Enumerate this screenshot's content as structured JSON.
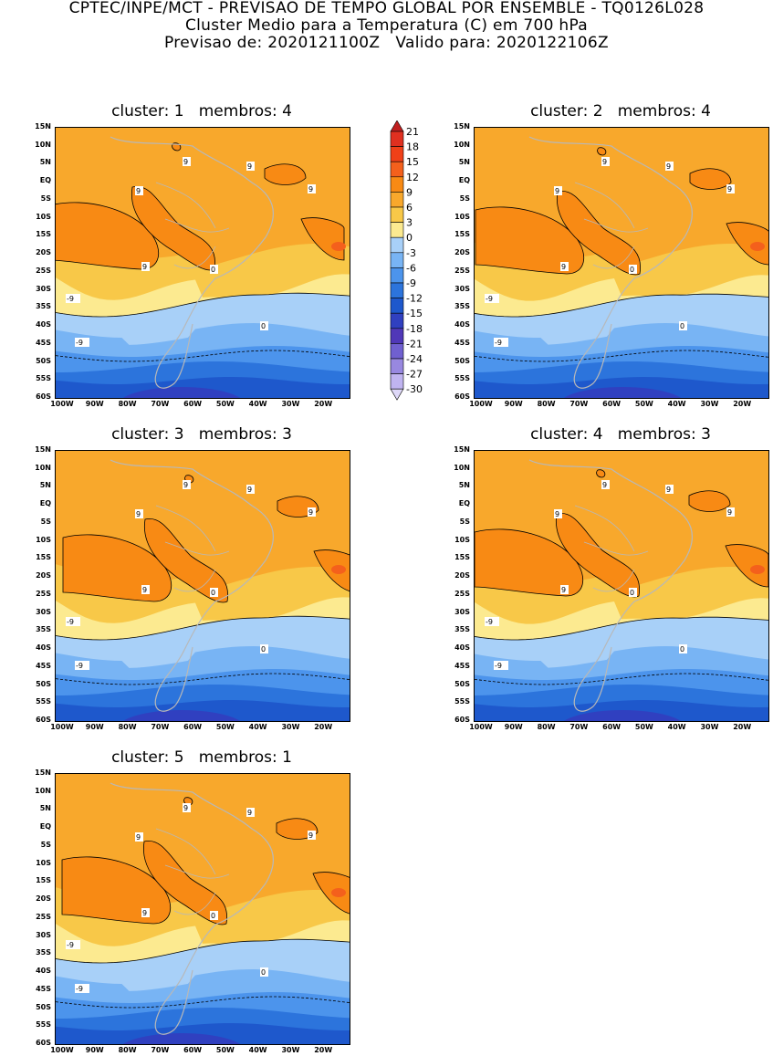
{
  "header": {
    "line1": "CPTEC/INPE/MCT - PREVISAO DE TEMPO GLOBAL POR ENSEMBLE - TQ0126L028",
    "line2": "Cluster Medio para a Temperatura (C) em 700 hPa",
    "line3": "Previsao de: 2020121100Z   Valido para: 2020122106Z"
  },
  "axes": {
    "lat_labels": [
      "15N",
      "10N",
      "5N",
      "EQ",
      "5S",
      "10S",
      "15S",
      "20S",
      "25S",
      "30S",
      "35S",
      "40S",
      "45S",
      "50S",
      "55S",
      "60S"
    ],
    "lon_labels": [
      "100W",
      "90W",
      "80W",
      "70W",
      "60W",
      "50W",
      "40W",
      "30W",
      "20W"
    ]
  },
  "colorbar": {
    "levels": [
      "21",
      "18",
      "15",
      "12",
      "9",
      "6",
      "3",
      "0",
      "-3",
      "-6",
      "-9",
      "-12",
      "-15",
      "-18",
      "-21",
      "-24",
      "-27",
      "-30"
    ],
    "colors": [
      "#c02020",
      "#e03020",
      "#f04018",
      "#f4601c",
      "#f88a14",
      "#f8a82c",
      "#f8c848",
      "#fcea90",
      "#a8d0f8",
      "#78b4f4",
      "#4c94ec",
      "#2c74dc",
      "#1e58cc",
      "#3040c0",
      "#5038b8",
      "#7060d0",
      "#9888e0",
      "#c0b4f0",
      "#ded8f8"
    ]
  },
  "panels": [
    {
      "title": "cluster: 1   membros: 4",
      "labels": [
        "9",
        "9",
        "9",
        "9",
        "9",
        "0",
        "0",
        "-9",
        "-9"
      ]
    },
    {
      "title": "cluster: 2   membros: 4",
      "labels": [
        "9",
        "9",
        "9",
        "9",
        "9",
        "0",
        "0",
        "-9",
        "-9"
      ]
    },
    {
      "title": "cluster: 3   membros: 3",
      "labels": [
        "9",
        "9",
        "9",
        "9",
        "9",
        "0",
        "0",
        "-9",
        "-9"
      ]
    },
    {
      "title": "cluster: 4   membros: 3",
      "labels": [
        "9",
        "9",
        "9",
        "9",
        "9",
        "0",
        "0",
        "-9",
        "-9"
      ]
    },
    {
      "title": "cluster: 5   membros: 1",
      "labels": [
        "9",
        "9",
        "9",
        "9",
        "9",
        "0",
        "0",
        "-9",
        "-9"
      ]
    }
  ]
}
